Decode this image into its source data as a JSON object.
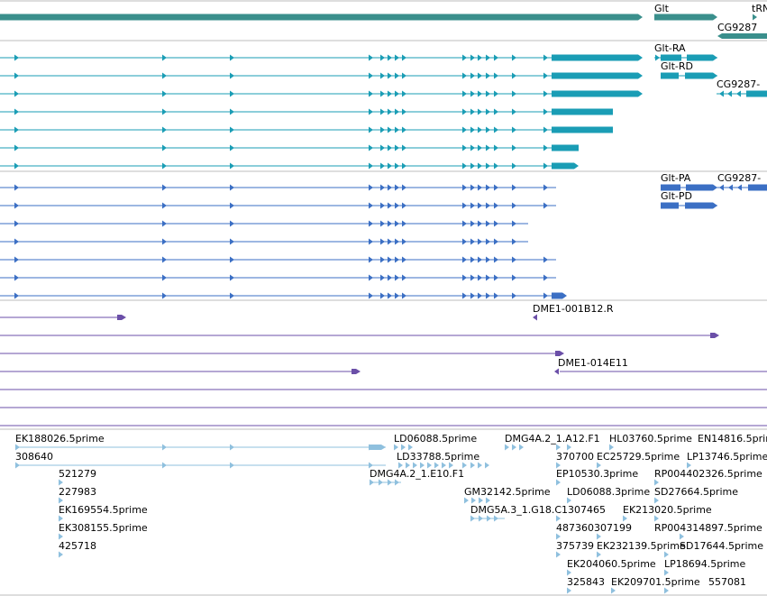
{
  "colors": {
    "gene": "#3a8f8c",
    "mrna": "#1a9db5",
    "protein": "#3b6fc4",
    "clone": "#6b4fa8",
    "est": "#8fc0de",
    "divider": "#bdbdbd"
  },
  "gene_track": {
    "labels": {
      "glt": "Glt",
      "trn": "tRN",
      "cg9287": "CG9287"
    }
  },
  "transcript_track": {
    "labels": {
      "glt_ra": "Glt-RA",
      "glt_rd": "Glt-RD",
      "cg9287_r": "CG9287-"
    }
  },
  "protein_track": {
    "labels": {
      "glt_pa": "Glt-PA",
      "cg9287_p": "CG9287-",
      "glt_pd": "Glt-PD"
    }
  },
  "clone_track": {
    "labels": {
      "dme1_001b12": "DME1-001B12.R",
      "dme1_014e11": "DME1-014E11"
    }
  },
  "est_track": {
    "labels": [
      "EK188026.5prime",
      "308640",
      "521279",
      "227983",
      "EK169554.5prime",
      "EK308155.5prime",
      "425718",
      "LD06088.5prime",
      "LD33788.5prime",
      "DMG4A.2_1.E10.F1",
      "DMG4A.2_1.A12.F1",
      "370700",
      "EP10530.3prime",
      "GM32142.5prime",
      "LD06088.3prime",
      "DMG5A.3_1.G18.C1307465",
      "487360307199",
      "375739",
      "HL03760.5prime",
      "EC25729.5prime",
      "EK213020.5prime",
      "EK232139.5prime",
      "EK204060.5prime",
      "325843",
      "EK209701.5prime",
      "EN14816.5prime",
      "LP13746.5prime",
      "RP004402326.5prime",
      "SD27664.5prime",
      "RP004314897.5prime",
      "SD17644.5prime",
      "LP18694.5prime",
      "557081"
    ]
  }
}
